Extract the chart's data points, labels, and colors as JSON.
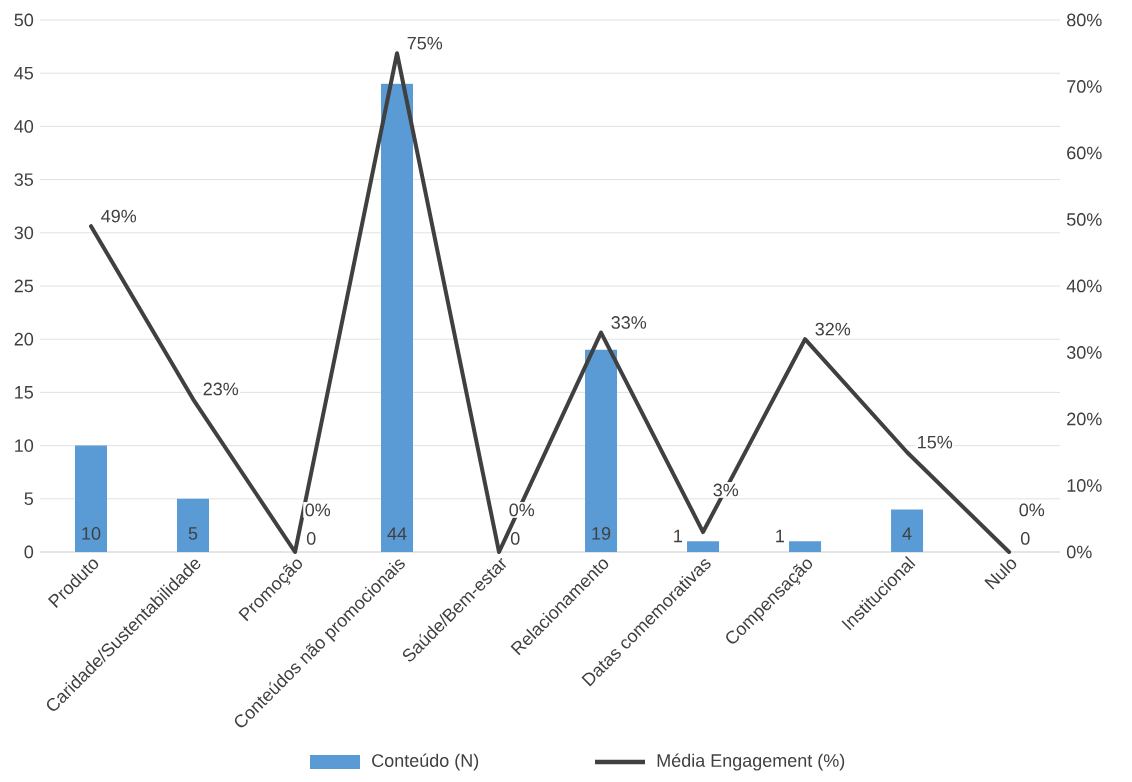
{
  "chart_data": {
    "type": "bar",
    "categories": [
      "Produto",
      "Caridade/Sustentabilidade",
      "Promoção",
      "Conteúdos não promocionais",
      "Saúde/Bem-estar",
      "Relacionamento",
      "Datas comemorativas",
      "Compensação",
      "Institucional",
      "Nulo"
    ],
    "series": [
      {
        "name": "Conteúdo (N)",
        "color": "#5b9bd5",
        "values": [
          10,
          5,
          0,
          44,
          0,
          19,
          1,
          1,
          4,
          0
        ],
        "value_labels": [
          "10",
          "5",
          "0",
          "44",
          "0",
          "19",
          "1",
          "1",
          "4",
          "0"
        ]
      },
      {
        "name": "Média Engagement (%)",
        "type": "line",
        "axis": "y2",
        "color": "#404040",
        "values": [
          49,
          23,
          0,
          75,
          0,
          33,
          3,
          32,
          15,
          0
        ],
        "value_labels": [
          "49%",
          "23%",
          "0%",
          "75%",
          "0%",
          "33%",
          "3%",
          "32%",
          "15%",
          "0%"
        ]
      }
    ],
    "ylim": [
      0,
      50
    ],
    "yticks": [
      0,
      5,
      10,
      15,
      20,
      25,
      30,
      35,
      40,
      45,
      50
    ],
    "y2lim": [
      0,
      80
    ],
    "y2ticks": [
      {
        "value": 0,
        "label": "0%"
      },
      {
        "value": 10,
        "label": "10%"
      },
      {
        "value": 20,
        "label": "20%"
      },
      {
        "value": 30,
        "label": "30%"
      },
      {
        "value": 40,
        "label": "40%"
      },
      {
        "value": 50,
        "label": "50%"
      },
      {
        "value": 60,
        "label": "60%"
      },
      {
        "value": 70,
        "label": "70%"
      },
      {
        "value": 80,
        "label": "80%"
      }
    ],
    "grid": "y",
    "legend": "bottom",
    "marker": "none",
    "line_style": "solid"
  }
}
